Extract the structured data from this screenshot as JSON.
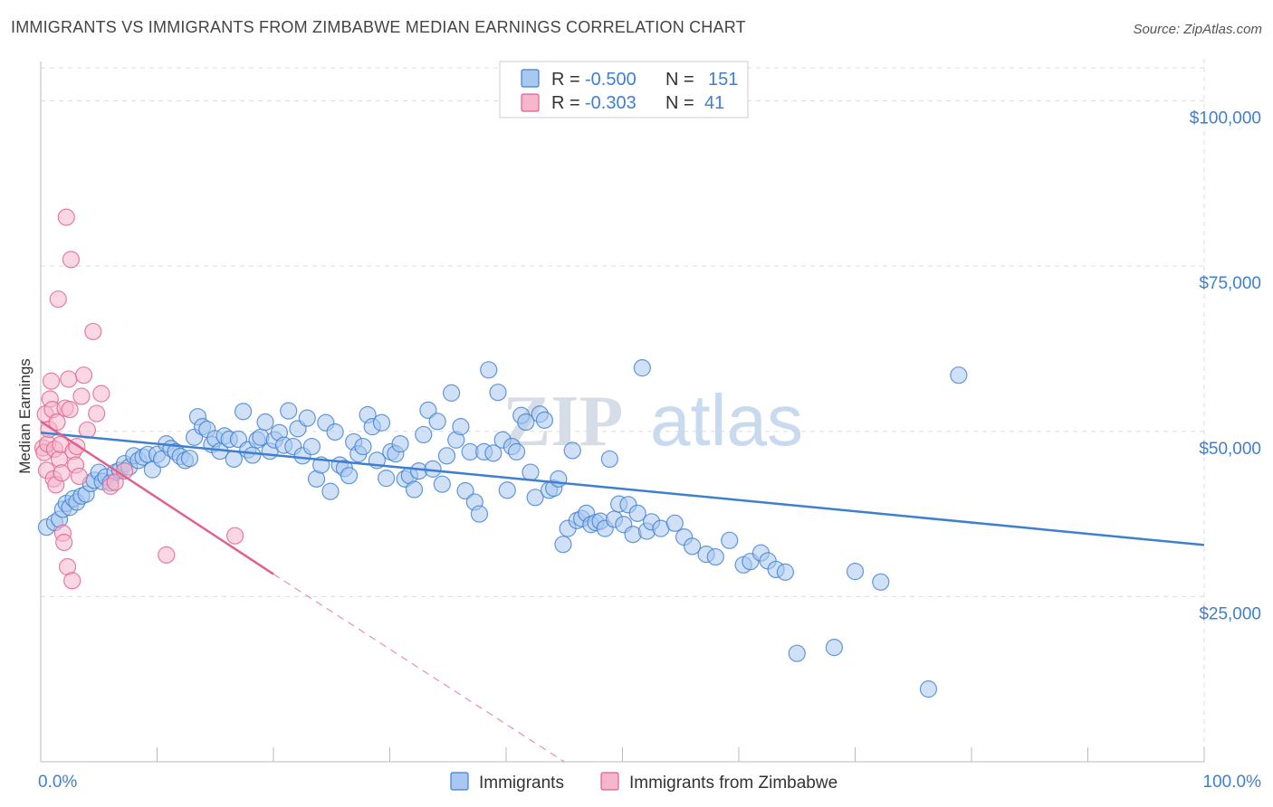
{
  "title": "IMMIGRANTS VS IMMIGRANTS FROM ZIMBABWE MEDIAN EARNINGS CORRELATION CHART",
  "source": "Source: ZipAtlas.com",
  "watermark": {
    "part1": "ZIP",
    "part2": "atlas"
  },
  "colors": {
    "blue": "#3f7fd0",
    "blue_fill": "#a9c8f0",
    "pink": "#e0608e",
    "pink_fill": "#f6b6cb",
    "grid": "#dddddd"
  },
  "legend": {
    "rows": [
      {
        "r_label": "R =",
        "r_value": "-0.500",
        "n_label": "N =",
        "n_value": "151"
      },
      {
        "r_label": "R =",
        "r_value": "-0.303",
        "n_label": "N =",
        "n_value": "41"
      }
    ]
  },
  "bottom_legend": [
    "Immigrants",
    "Immigrants from Zimbabwe"
  ],
  "chart_data": {
    "type": "scatter",
    "ylabel": "Median Earnings",
    "xlim": [
      0,
      100
    ],
    "ylim": [
      0,
      105000
    ],
    "x_tick_labels": [
      "0.0%",
      "100.0%"
    ],
    "y_ticks": [
      25000,
      50000,
      75000,
      100000
    ],
    "y_tick_labels": [
      "$25,000",
      "$50,000",
      "$75,000",
      "$100,000"
    ],
    "grid": true,
    "legend_placement": "top-center",
    "series": [
      {
        "name": "Immigrants",
        "trend": {
          "x": [
            0,
            100
          ],
          "y": [
            49800,
            32800
          ]
        },
        "points": [
          [
            0.5,
            35500
          ],
          [
            1.2,
            36200
          ],
          [
            1.6,
            36700
          ],
          [
            1.9,
            38200
          ],
          [
            2.2,
            39100
          ],
          [
            2.5,
            38500
          ],
          [
            2.8,
            39800
          ],
          [
            3.1,
            39300
          ],
          [
            3.5,
            40200
          ],
          [
            3.9,
            40500
          ],
          [
            4.3,
            42100
          ],
          [
            4.6,
            42600
          ],
          [
            5.0,
            43800
          ],
          [
            5.3,
            42400
          ],
          [
            5.6,
            43100
          ],
          [
            6.0,
            42200
          ],
          [
            6.4,
            43800
          ],
          [
            6.8,
            44100
          ],
          [
            7.2,
            45100
          ],
          [
            7.6,
            44600
          ],
          [
            8.0,
            46300
          ],
          [
            8.4,
            45600
          ],
          [
            8.8,
            46100
          ],
          [
            9.2,
            46500
          ],
          [
            9.6,
            44200
          ],
          [
            10.0,
            46500
          ],
          [
            10.4,
            45800
          ],
          [
            10.8,
            48100
          ],
          [
            11.2,
            47400
          ],
          [
            11.6,
            46900
          ],
          [
            12.0,
            46200
          ],
          [
            12.4,
            45600
          ],
          [
            12.8,
            45900
          ],
          [
            13.2,
            49100
          ],
          [
            13.5,
            52200
          ],
          [
            13.9,
            50700
          ],
          [
            14.3,
            50300
          ],
          [
            14.7,
            48000
          ],
          [
            15.0,
            48900
          ],
          [
            15.4,
            47000
          ],
          [
            15.8,
            49300
          ],
          [
            16.2,
            48800
          ],
          [
            16.6,
            45800
          ],
          [
            17.0,
            48800
          ],
          [
            17.4,
            53000
          ],
          [
            17.8,
            47200
          ],
          [
            18.2,
            46400
          ],
          [
            18.6,
            48700
          ],
          [
            18.9,
            49100
          ],
          [
            19.3,
            51400
          ],
          [
            19.7,
            47000
          ],
          [
            20.1,
            48700
          ],
          [
            20.5,
            49800
          ],
          [
            20.9,
            47900
          ],
          [
            21.3,
            53100
          ],
          [
            21.7,
            47700
          ],
          [
            22.1,
            50400
          ],
          [
            22.5,
            46300
          ],
          [
            22.9,
            52000
          ],
          [
            23.3,
            47700
          ],
          [
            23.7,
            42800
          ],
          [
            24.1,
            44900
          ],
          [
            24.5,
            51300
          ],
          [
            24.9,
            40900
          ],
          [
            25.3,
            49900
          ],
          [
            25.7,
            44900
          ],
          [
            26.1,
            44400
          ],
          [
            26.5,
            43300
          ],
          [
            26.9,
            48400
          ],
          [
            27.3,
            46600
          ],
          [
            27.7,
            47700
          ],
          [
            28.1,
            52500
          ],
          [
            28.5,
            50700
          ],
          [
            28.9,
            45600
          ],
          [
            29.3,
            51300
          ],
          [
            29.7,
            42900
          ],
          [
            30.1,
            46900
          ],
          [
            30.5,
            46600
          ],
          [
            30.9,
            48100
          ],
          [
            31.3,
            42800
          ],
          [
            31.7,
            43300
          ],
          [
            32.1,
            41200
          ],
          [
            32.5,
            44000
          ],
          [
            32.9,
            49500
          ],
          [
            33.3,
            53200
          ],
          [
            33.7,
            44300
          ],
          [
            34.1,
            51500
          ],
          [
            34.5,
            42000
          ],
          [
            34.9,
            46300
          ],
          [
            35.3,
            55800
          ],
          [
            35.7,
            48700
          ],
          [
            36.1,
            50700
          ],
          [
            36.5,
            41000
          ],
          [
            36.9,
            46900
          ],
          [
            37.3,
            39300
          ],
          [
            37.7,
            37500
          ],
          [
            38.1,
            46900
          ],
          [
            38.5,
            59300
          ],
          [
            38.9,
            46700
          ],
          [
            39.3,
            55900
          ],
          [
            39.7,
            48700
          ],
          [
            40.1,
            41100
          ],
          [
            40.5,
            47700
          ],
          [
            40.9,
            46900
          ],
          [
            41.3,
            52400
          ],
          [
            41.7,
            51400
          ],
          [
            42.1,
            43800
          ],
          [
            42.5,
            40000
          ],
          [
            42.9,
            52600
          ],
          [
            43.3,
            51700
          ],
          [
            43.7,
            41100
          ],
          [
            44.1,
            41400
          ],
          [
            44.5,
            42800
          ],
          [
            44.9,
            32900
          ],
          [
            45.3,
            35300
          ],
          [
            45.7,
            47100
          ],
          [
            46.1,
            36500
          ],
          [
            46.5,
            36800
          ],
          [
            46.9,
            37600
          ],
          [
            47.3,
            35900
          ],
          [
            47.7,
            36200
          ],
          [
            48.1,
            36400
          ],
          [
            48.5,
            35300
          ],
          [
            48.9,
            45800
          ],
          [
            49.3,
            36700
          ],
          [
            49.7,
            39000
          ],
          [
            50.1,
            35900
          ],
          [
            50.5,
            38900
          ],
          [
            50.9,
            34400
          ],
          [
            51.3,
            37600
          ],
          [
            51.7,
            59600
          ],
          [
            52.1,
            34900
          ],
          [
            52.5,
            36300
          ],
          [
            53.3,
            35300
          ],
          [
            54.5,
            36100
          ],
          [
            55.3,
            34000
          ],
          [
            56.0,
            32600
          ],
          [
            57.2,
            31400
          ],
          [
            58.0,
            31000
          ],
          [
            59.2,
            33500
          ],
          [
            60.4,
            29800
          ],
          [
            61.0,
            30300
          ],
          [
            61.9,
            31600
          ],
          [
            62.5,
            30400
          ],
          [
            63.2,
            29100
          ],
          [
            64.0,
            28700
          ],
          [
            65.0,
            16400
          ],
          [
            68.2,
            17300
          ],
          [
            70.0,
            28800
          ],
          [
            72.2,
            27200
          ],
          [
            76.3,
            11000
          ],
          [
            78.9,
            58500
          ]
        ]
      },
      {
        "name": "Immigrants from Zimbabwe",
        "trend": {
          "x": [
            0,
            20
          ],
          "y": [
            51500,
            28400
          ]
        },
        "trend_extension": {
          "x": [
            20,
            45
          ],
          "y": [
            28400,
            0
          ]
        },
        "points": [
          [
            0.2,
            47500
          ],
          [
            0.3,
            46800
          ],
          [
            0.4,
            52600
          ],
          [
            0.5,
            44100
          ],
          [
            0.6,
            48100
          ],
          [
            0.7,
            50300
          ],
          [
            0.8,
            54900
          ],
          [
            0.9,
            57600
          ],
          [
            1.0,
            53300
          ],
          [
            1.1,
            42800
          ],
          [
            1.2,
            47300
          ],
          [
            1.3,
            41900
          ],
          [
            1.4,
            51400
          ],
          [
            1.5,
            70000
          ],
          [
            1.6,
            45800
          ],
          [
            1.7,
            48000
          ],
          [
            1.8,
            43700
          ],
          [
            1.9,
            34600
          ],
          [
            2.0,
            33200
          ],
          [
            2.1,
            53500
          ],
          [
            2.2,
            82400
          ],
          [
            2.3,
            29500
          ],
          [
            2.4,
            57900
          ],
          [
            2.5,
            53300
          ],
          [
            2.6,
            76000
          ],
          [
            2.7,
            27400
          ],
          [
            2.8,
            47000
          ],
          [
            3.0,
            44900
          ],
          [
            3.1,
            47700
          ],
          [
            3.3,
            43200
          ],
          [
            3.5,
            55300
          ],
          [
            3.7,
            58500
          ],
          [
            4.0,
            50200
          ],
          [
            4.5,
            65100
          ],
          [
            4.8,
            52700
          ],
          [
            5.2,
            55700
          ],
          [
            6.0,
            41700
          ],
          [
            6.4,
            42300
          ],
          [
            7.2,
            44000
          ],
          [
            10.8,
            31300
          ],
          [
            16.7,
            34200
          ]
        ]
      }
    ]
  }
}
